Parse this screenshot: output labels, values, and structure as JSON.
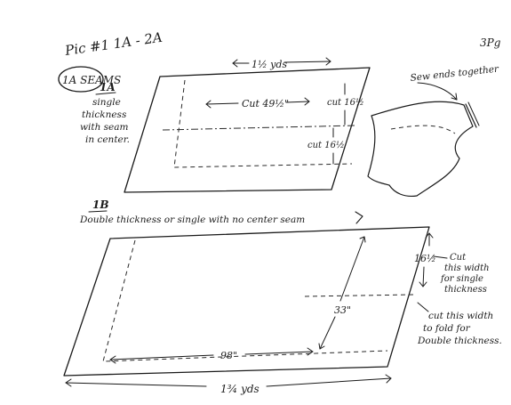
{
  "page": {
    "header": "Pic #1 1A - 2A",
    "circled_label": "1A SEAMS",
    "page_number": "3Pg"
  },
  "diagram_1a": {
    "label": "1A",
    "desc_lines": [
      "single",
      "thickness",
      "with seam",
      "in center."
    ],
    "top_measure": "1½ yds",
    "cut_length": "Cut 49½\"",
    "cut_top": "cut 16½",
    "cut_bottom": "cut 16½"
  },
  "sewn_tube": {
    "caption": "Sew ends together"
  },
  "diagram_1b": {
    "label": "1B",
    "desc": "Double thickness or single with no center seam",
    "height_measure": "16½",
    "right_note_1": [
      "Cut",
      "this width",
      "for single",
      "thickness"
    ],
    "center_measure": "33\"",
    "right_note_2": [
      "cut this width",
      "to fold for",
      "Double thickness."
    ],
    "length_measure": "98\"",
    "bottom_measure": "1¾ yds"
  }
}
